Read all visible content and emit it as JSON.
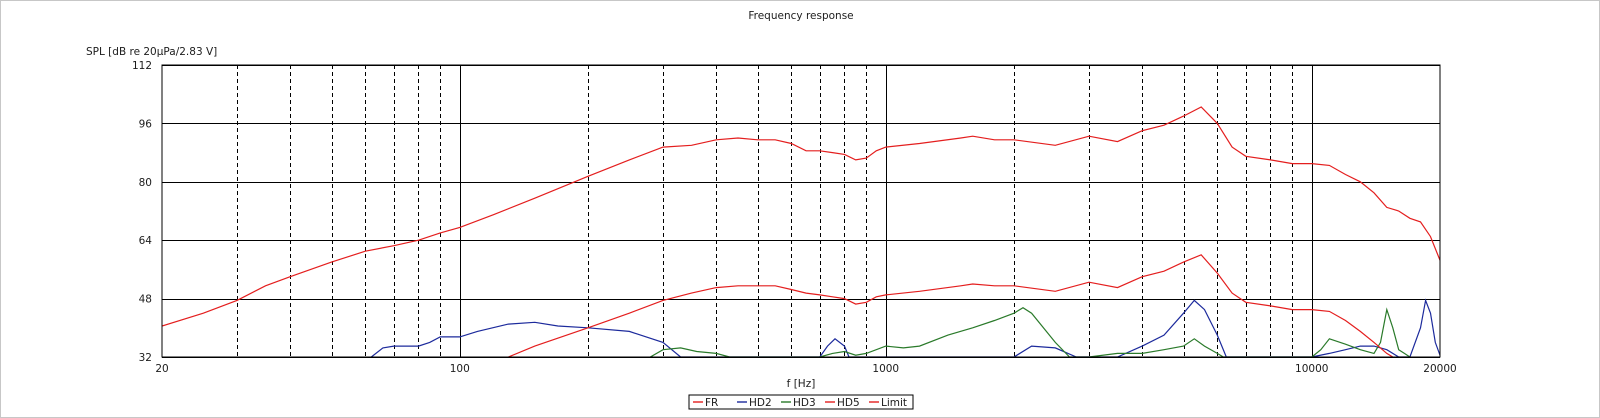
{
  "chart_data": {
    "type": "line",
    "title": "Frequency response",
    "xlabel": "f [Hz]",
    "ylabel": "SPL [dB re 20µPa/2.83 V]",
    "x_scale": "log",
    "xlim": [
      20,
      20000
    ],
    "ylim": [
      32,
      112
    ],
    "y_ticks": [
      32,
      48,
      64,
      80,
      96,
      112
    ],
    "x_tick_labels": [
      {
        "value": 20,
        "label": "20"
      },
      {
        "value": 100,
        "label": "100"
      },
      {
        "value": 1000,
        "label": "1000"
      },
      {
        "value": 10000,
        "label": "10000"
      },
      {
        "value": 20000,
        "label": "20000"
      }
    ],
    "grid": true,
    "legend_position": "bottom-center",
    "series": [
      {
        "name": "FR",
        "color": "#e41e1e",
        "points": [
          [
            20,
            40.5
          ],
          [
            25,
            44
          ],
          [
            30,
            47.5
          ],
          [
            35,
            51.5
          ],
          [
            40,
            54
          ],
          [
            50,
            58
          ],
          [
            60,
            61
          ],
          [
            70,
            62.5
          ],
          [
            80,
            64
          ],
          [
            90,
            66
          ],
          [
            100,
            67.5
          ],
          [
            120,
            71
          ],
          [
            150,
            75.5
          ],
          [
            200,
            81.5
          ],
          [
            250,
            86
          ],
          [
            300,
            89.5
          ],
          [
            350,
            90
          ],
          [
            400,
            91.5
          ],
          [
            450,
            92
          ],
          [
            500,
            91.5
          ],
          [
            550,
            91.5
          ],
          [
            600,
            90.5
          ],
          [
            650,
            88.5
          ],
          [
            700,
            88.5
          ],
          [
            750,
            88
          ],
          [
            800,
            87.5
          ],
          [
            850,
            86
          ],
          [
            900,
            86.5
          ],
          [
            950,
            88.5
          ],
          [
            1000,
            89.5
          ],
          [
            1200,
            90.5
          ],
          [
            1500,
            92
          ],
          [
            1600,
            92.5
          ],
          [
            1800,
            91.5
          ],
          [
            2000,
            91.5
          ],
          [
            2500,
            90
          ],
          [
            3000,
            92.5
          ],
          [
            3500,
            91
          ],
          [
            4000,
            94
          ],
          [
            4500,
            95.5
          ],
          [
            5000,
            98
          ],
          [
            5500,
            100.5
          ],
          [
            6000,
            96
          ],
          [
            6500,
            89.5
          ],
          [
            7000,
            87
          ],
          [
            8000,
            86
          ],
          [
            9000,
            85
          ],
          [
            10000,
            85
          ],
          [
            11000,
            84.5
          ],
          [
            12000,
            82
          ],
          [
            13000,
            80
          ],
          [
            14000,
            77
          ],
          [
            15000,
            73
          ],
          [
            16000,
            72
          ],
          [
            17000,
            70
          ],
          [
            18000,
            69
          ],
          [
            19000,
            65
          ],
          [
            20000,
            58.5
          ]
        ]
      },
      {
        "name": "HD2",
        "color": "#1c2a9c",
        "points": [
          [
            62,
            32
          ],
          [
            66,
            34.5
          ],
          [
            70,
            35
          ],
          [
            75,
            35
          ],
          [
            80,
            35
          ],
          [
            85,
            36
          ],
          [
            90,
            37.5
          ],
          [
            100,
            37.5
          ],
          [
            110,
            39
          ],
          [
            130,
            41
          ],
          [
            150,
            41.5
          ],
          [
            170,
            40.5
          ],
          [
            200,
            40
          ],
          [
            250,
            39
          ],
          [
            300,
            36
          ],
          [
            330,
            32
          ],
          [
            400,
            32
          ],
          [
            700,
            32
          ],
          [
            730,
            35
          ],
          [
            760,
            37
          ],
          [
            800,
            35
          ],
          [
            820,
            32
          ],
          [
            1000,
            32
          ],
          [
            2000,
            32
          ],
          [
            2200,
            35
          ],
          [
            2500,
            34.5
          ],
          [
            2800,
            32
          ],
          [
            3000,
            32
          ],
          [
            3500,
            32
          ],
          [
            4000,
            35
          ],
          [
            4500,
            38
          ],
          [
            5000,
            44
          ],
          [
            5300,
            47.5
          ],
          [
            5600,
            45
          ],
          [
            6000,
            38
          ],
          [
            6300,
            32
          ],
          [
            10000,
            32
          ],
          [
            11000,
            33
          ],
          [
            12000,
            34
          ],
          [
            13000,
            35
          ],
          [
            14000,
            35
          ],
          [
            15000,
            34
          ],
          [
            16000,
            32
          ],
          [
            17000,
            32
          ],
          [
            18000,
            40
          ],
          [
            18500,
            47.5
          ],
          [
            19000,
            44
          ],
          [
            19500,
            36
          ],
          [
            20000,
            32.5
          ]
        ]
      },
      {
        "name": "HD3",
        "color": "#2a7a2a",
        "points": [
          [
            280,
            32
          ],
          [
            300,
            34
          ],
          [
            330,
            34.5
          ],
          [
            360,
            33.5
          ],
          [
            400,
            33
          ],
          [
            430,
            32
          ],
          [
            700,
            32
          ],
          [
            750,
            33
          ],
          [
            800,
            33.5
          ],
          [
            850,
            32.5
          ],
          [
            900,
            33
          ],
          [
            1000,
            35
          ],
          [
            1100,
            34.5
          ],
          [
            1200,
            35
          ],
          [
            1400,
            38
          ],
          [
            1600,
            40
          ],
          [
            1800,
            42
          ],
          [
            2000,
            44
          ],
          [
            2100,
            45.5
          ],
          [
            2200,
            44
          ],
          [
            2500,
            36
          ],
          [
            2700,
            32
          ],
          [
            3000,
            32
          ],
          [
            3500,
            33
          ],
          [
            4000,
            33
          ],
          [
            4500,
            34
          ],
          [
            5000,
            35
          ],
          [
            5300,
            37
          ],
          [
            5600,
            35
          ],
          [
            6000,
            33
          ],
          [
            6200,
            32
          ],
          [
            10000,
            32
          ],
          [
            10500,
            34
          ],
          [
            11000,
            37
          ],
          [
            12000,
            35.5
          ],
          [
            13000,
            34
          ],
          [
            14000,
            33
          ],
          [
            14500,
            36
          ],
          [
            15000,
            45
          ],
          [
            15500,
            40
          ],
          [
            16000,
            34
          ],
          [
            16500,
            33
          ],
          [
            17000,
            32
          ]
        ]
      },
      {
        "name": "HD5",
        "color": "#e41e1e",
        "points": [
          [
            130,
            32
          ],
          [
            150,
            35
          ],
          [
            200,
            40
          ],
          [
            250,
            44
          ],
          [
            300,
            47.5
          ],
          [
            350,
            49.5
          ],
          [
            400,
            51
          ],
          [
            450,
            51.5
          ],
          [
            500,
            51.5
          ],
          [
            550,
            51.5
          ],
          [
            600,
            50.5
          ],
          [
            650,
            49.5
          ],
          [
            700,
            49
          ],
          [
            750,
            48.5
          ],
          [
            800,
            48
          ],
          [
            850,
            46.5
          ],
          [
            900,
            47
          ],
          [
            950,
            48.5
          ],
          [
            1000,
            49
          ],
          [
            1200,
            50
          ],
          [
            1500,
            51.5
          ],
          [
            1600,
            52
          ],
          [
            1800,
            51.5
          ],
          [
            2000,
            51.5
          ],
          [
            2500,
            50
          ],
          [
            3000,
            52.5
          ],
          [
            3500,
            51
          ],
          [
            4000,
            54
          ],
          [
            4500,
            55.5
          ],
          [
            5000,
            58
          ],
          [
            5500,
            60
          ],
          [
            6000,
            55
          ],
          [
            6500,
            49.5
          ],
          [
            7000,
            47
          ],
          [
            8000,
            46
          ],
          [
            9000,
            45
          ],
          [
            10000,
            45
          ],
          [
            11000,
            44.5
          ],
          [
            12000,
            42
          ],
          [
            13000,
            39
          ],
          [
            14000,
            36
          ],
          [
            15000,
            33
          ],
          [
            15500,
            32
          ]
        ]
      },
      {
        "name": "Limit",
        "color": "#e41e1e",
        "points": []
      }
    ]
  }
}
